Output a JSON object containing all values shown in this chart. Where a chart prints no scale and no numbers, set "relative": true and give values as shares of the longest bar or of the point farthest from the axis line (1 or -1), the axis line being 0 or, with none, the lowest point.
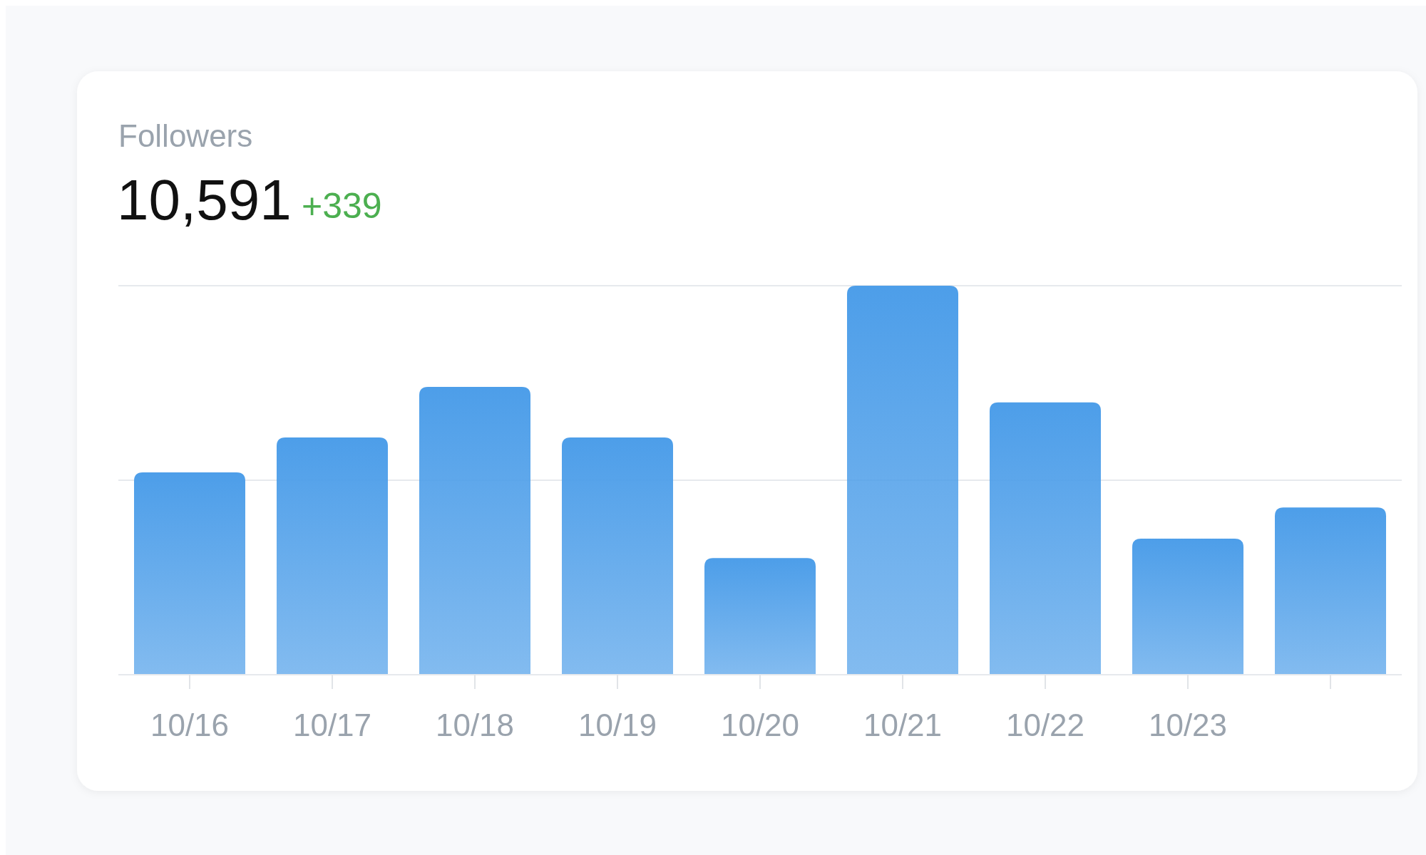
{
  "chart_data": {
    "type": "bar",
    "title": "Followers",
    "subtitle": "10,591",
    "annotations": [
      "+339"
    ],
    "relative": true,
    "color": "#4d9ee9",
    "ref_lines": [
      {
        "axis": "y",
        "value": 0.5,
        "color": "#e6e9ed"
      },
      {
        "axis": "y",
        "value": 1,
        "color": "#e6e9ed"
      }
    ],
    "categories": [
      "10/16",
      "10/17",
      "10/18",
      "10/19",
      "10/20",
      "10/21",
      "10/22",
      "10/23",
      null
    ],
    "values": [
      0.52,
      0.61,
      0.74,
      0.61,
      0.3,
      1,
      0.7,
      0.35,
      0.43
    ]
  }
}
